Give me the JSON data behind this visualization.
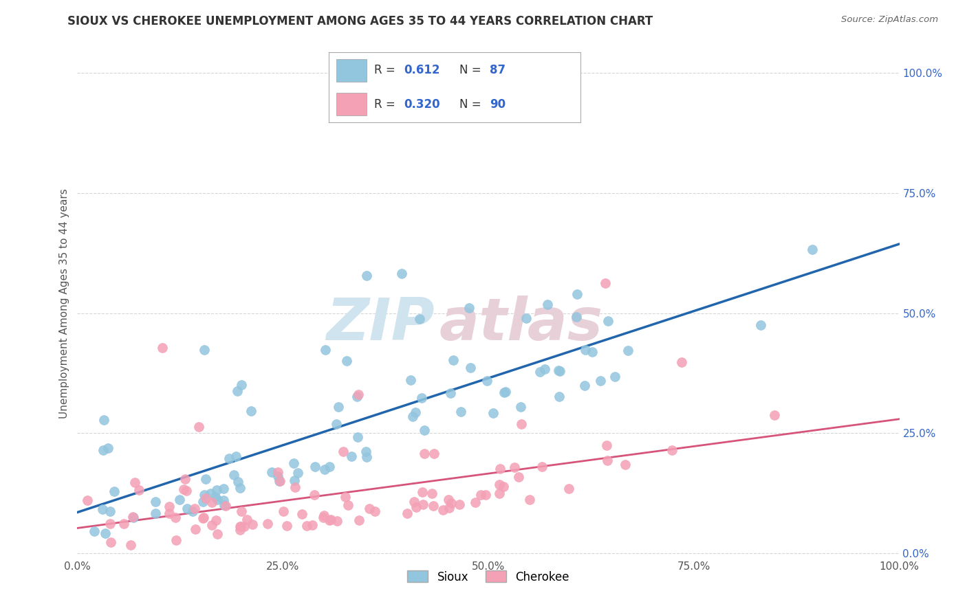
{
  "title": "SIOUX VS CHEROKEE UNEMPLOYMENT AMONG AGES 35 TO 44 YEARS CORRELATION CHART",
  "source": "Source: ZipAtlas.com",
  "ylabel": "Unemployment Among Ages 35 to 44 years",
  "xlabel_ticks": [
    "0.0%",
    "25.0%",
    "50.0%",
    "75.0%",
    "100.0%"
  ],
  "ylabel_ticks": [
    "0.0%",
    "25.0%",
    "50.0%",
    "75.0%",
    "100.0%"
  ],
  "sioux_R": "0.612",
  "sioux_N": "87",
  "cherokee_R": "0.320",
  "cherokee_N": "90",
  "sioux_color": "#92c5de",
  "sioux_edge": "#92c5de",
  "cherokee_color": "#f4a0b5",
  "cherokee_edge": "#f4a0b5",
  "sioux_line_color": "#2166ac",
  "cherokee_line_color": "#d6537a",
  "watermark_zip_color": "#d0e4f0",
  "watermark_atlas_color": "#e8d0d8",
  "background_color": "#ffffff",
  "grid_color": "#cccccc",
  "title_color": "#333333",
  "legend_label_color": "#3366cc",
  "tick_color": "#555555"
}
